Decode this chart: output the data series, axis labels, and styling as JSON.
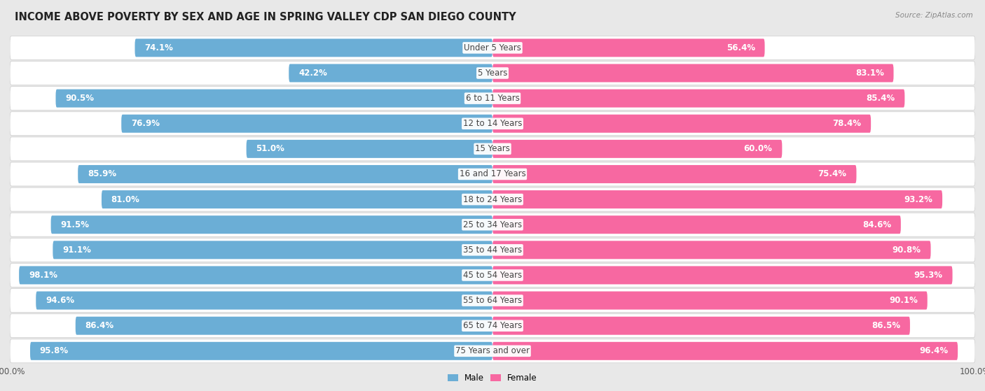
{
  "title": "INCOME ABOVE POVERTY BY SEX AND AGE IN SPRING VALLEY CDP SAN DIEGO COUNTY",
  "source": "Source: ZipAtlas.com",
  "categories": [
    "Under 5 Years",
    "5 Years",
    "6 to 11 Years",
    "12 to 14 Years",
    "15 Years",
    "16 and 17 Years",
    "18 to 24 Years",
    "25 to 34 Years",
    "35 to 44 Years",
    "45 to 54 Years",
    "55 to 64 Years",
    "65 to 74 Years",
    "75 Years and over"
  ],
  "male_values": [
    74.1,
    42.2,
    90.5,
    76.9,
    51.0,
    85.9,
    81.0,
    91.5,
    91.1,
    98.1,
    94.6,
    86.4,
    95.8
  ],
  "female_values": [
    56.4,
    83.1,
    85.4,
    78.4,
    60.0,
    75.4,
    93.2,
    84.6,
    90.8,
    95.3,
    90.1,
    86.5,
    96.4
  ],
  "male_color": "#6baed6",
  "female_color": "#f768a1",
  "male_color_light": "#c6dbef",
  "female_color_light": "#fcc5e0",
  "bg_color": "#e8e8e8",
  "bar_bg_color": "#ffffff",
  "title_fontsize": 10.5,
  "label_fontsize": 8.5,
  "value_fontsize": 8.5,
  "axis_max": 100.0,
  "legend_male": "Male",
  "legend_female": "Female"
}
